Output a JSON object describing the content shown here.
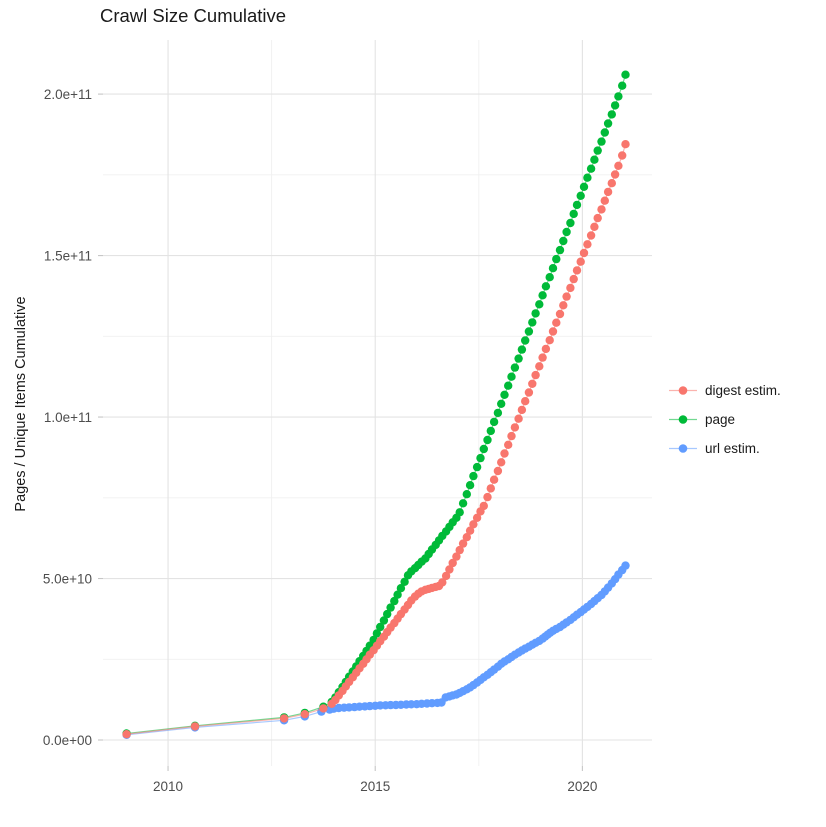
{
  "title": "Crawl Size Cumulative",
  "y_axis_title": "Pages / Unique Items Cumulative",
  "legend": {
    "position": "right",
    "items": [
      {
        "label": "digest estim.",
        "color": "#F8766D"
      },
      {
        "label": "page",
        "color": "#00BA38"
      },
      {
        "label": "url estim.",
        "color": "#619CFF"
      }
    ]
  },
  "colors": {
    "background": "#ffffff",
    "grid_major": "#e3e3e3",
    "grid_minor": "#f0f0f0",
    "axis_tick": "#c6c6c6",
    "tick_label": "#4d4d4d",
    "text": "#1a1a1a",
    "digest": "#F8766D",
    "page": "#00BA38",
    "url": "#619CFF"
  },
  "chart_data": {
    "type": "line",
    "title": "Crawl Size Cumulative",
    "xlabel": "",
    "ylabel": "Pages / Unique Items Cumulative",
    "values_unit": "cumulative items; point values below are in billions (value x 1e9)",
    "grid": true,
    "legend_position": "right",
    "x_domain": [
      2008.43,
      2021.68
    ],
    "y_domain_e9": [
      -8.05,
      216.75
    ],
    "x_major_ticks": [
      {
        "value": 2010,
        "label": "2010"
      },
      {
        "value": 2015,
        "label": "2015"
      },
      {
        "value": 2020,
        "label": "2020"
      }
    ],
    "x_minor_ticks": [
      2012.5,
      2017.5
    ],
    "y_major_ticks": [
      {
        "value": 0,
        "label": "0.0e+00"
      },
      {
        "value": 50,
        "label": "5.0e+10"
      },
      {
        "value": 100,
        "label": "1.0e+11"
      },
      {
        "value": 150,
        "label": "1.5e+11"
      },
      {
        "value": 200,
        "label": "2.0e+11"
      }
    ],
    "y_minor_ticks": [
      25,
      75,
      125,
      175
    ],
    "series": [
      {
        "name": "digest estim.",
        "color": "#F8766D",
        "points": [
          [
            2009.0,
            1.8
          ],
          [
            2010.65,
            4.2
          ],
          [
            2012.8,
            6.7
          ],
          [
            2013.3,
            8.0
          ],
          [
            2013.75,
            9.8
          ],
          [
            2013.95,
            11.2
          ],
          [
            2014.04,
            12.4
          ],
          [
            2014.12,
            13.8
          ],
          [
            2014.21,
            15.2
          ],
          [
            2014.29,
            16.6
          ],
          [
            2014.37,
            18.0
          ],
          [
            2014.46,
            19.4
          ],
          [
            2014.54,
            20.8
          ],
          [
            2014.62,
            22.2
          ],
          [
            2014.71,
            23.6
          ],
          [
            2014.79,
            25.0
          ],
          [
            2014.87,
            26.4
          ],
          [
            2014.96,
            27.8
          ],
          [
            2015.04,
            29.2
          ],
          [
            2015.12,
            30.6
          ],
          [
            2015.21,
            32.0
          ],
          [
            2015.29,
            33.4
          ],
          [
            2015.37,
            34.8
          ],
          [
            2015.46,
            36.2
          ],
          [
            2015.54,
            37.6
          ],
          [
            2015.62,
            39.0
          ],
          [
            2015.71,
            40.4
          ],
          [
            2015.79,
            41.8
          ],
          [
            2015.87,
            43.2
          ],
          [
            2015.96,
            44.4
          ],
          [
            2016.04,
            45.3
          ],
          [
            2016.12,
            46.0
          ],
          [
            2016.21,
            46.5
          ],
          [
            2016.29,
            46.8
          ],
          [
            2016.37,
            47.1
          ],
          [
            2016.46,
            47.4
          ],
          [
            2016.54,
            47.7
          ],
          [
            2016.62,
            48.8
          ],
          [
            2016.71,
            50.8
          ],
          [
            2016.79,
            52.8
          ],
          [
            2016.87,
            54.8
          ],
          [
            2016.96,
            56.8
          ],
          [
            2017.04,
            58.8
          ],
          [
            2017.12,
            60.8
          ],
          [
            2017.21,
            62.8
          ],
          [
            2017.29,
            64.8
          ],
          [
            2017.37,
            66.8
          ],
          [
            2017.46,
            68.8
          ],
          [
            2017.54,
            70.8
          ],
          [
            2017.62,
            72.5
          ],
          [
            2017.71,
            75.2
          ],
          [
            2017.79,
            77.9
          ],
          [
            2017.87,
            80.6
          ],
          [
            2017.96,
            83.3
          ],
          [
            2018.04,
            86.0
          ],
          [
            2018.12,
            88.7
          ],
          [
            2018.21,
            91.4
          ],
          [
            2018.29,
            94.1
          ],
          [
            2018.37,
            96.8
          ],
          [
            2018.46,
            99.5
          ],
          [
            2018.54,
            102.2
          ],
          [
            2018.62,
            104.9
          ],
          [
            2018.71,
            107.6
          ],
          [
            2018.79,
            110.3
          ],
          [
            2018.87,
            113.0
          ],
          [
            2018.96,
            115.7
          ],
          [
            2019.04,
            118.4
          ],
          [
            2019.12,
            121.1
          ],
          [
            2019.21,
            123.8
          ],
          [
            2019.29,
            126.5
          ],
          [
            2019.37,
            129.2
          ],
          [
            2019.46,
            131.9
          ],
          [
            2019.54,
            134.6
          ],
          [
            2019.62,
            137.3
          ],
          [
            2019.71,
            140.0
          ],
          [
            2019.79,
            142.7
          ],
          [
            2019.87,
            145.4
          ],
          [
            2019.96,
            148.1
          ],
          [
            2020.04,
            150.8
          ],
          [
            2020.12,
            153.5
          ],
          [
            2020.21,
            156.2
          ],
          [
            2020.29,
            158.9
          ],
          [
            2020.37,
            161.6
          ],
          [
            2020.46,
            164.3
          ],
          [
            2020.54,
            167.0
          ],
          [
            2020.62,
            169.7
          ],
          [
            2020.71,
            172.4
          ],
          [
            2020.79,
            175.1
          ],
          [
            2020.87,
            177.8
          ],
          [
            2020.96,
            181.0
          ],
          [
            2021.04,
            184.5
          ]
        ]
      },
      {
        "name": "page",
        "color": "#00BA38",
        "points": [
          [
            2009.0,
            2.0
          ],
          [
            2010.65,
            4.4
          ],
          [
            2012.8,
            7.0
          ],
          [
            2013.3,
            8.4
          ],
          [
            2013.75,
            10.3
          ],
          [
            2013.95,
            11.8
          ],
          [
            2014.04,
            13.2
          ],
          [
            2014.12,
            14.8
          ],
          [
            2014.21,
            16.4
          ],
          [
            2014.29,
            18.0
          ],
          [
            2014.37,
            19.6
          ],
          [
            2014.46,
            21.2
          ],
          [
            2014.54,
            22.8
          ],
          [
            2014.62,
            24.4
          ],
          [
            2014.71,
            26.0
          ],
          [
            2014.79,
            27.6
          ],
          [
            2014.87,
            29.2
          ],
          [
            2014.96,
            31.0
          ],
          [
            2015.04,
            33.0
          ],
          [
            2015.12,
            35.0
          ],
          [
            2015.21,
            37.0
          ],
          [
            2015.29,
            39.0
          ],
          [
            2015.37,
            41.0
          ],
          [
            2015.46,
            43.0
          ],
          [
            2015.54,
            45.0
          ],
          [
            2015.62,
            47.0
          ],
          [
            2015.71,
            49.0
          ],
          [
            2015.79,
            51.0
          ],
          [
            2015.87,
            52.2
          ],
          [
            2015.96,
            53.2
          ],
          [
            2016.04,
            54.2
          ],
          [
            2016.12,
            55.2
          ],
          [
            2016.21,
            56.2
          ],
          [
            2016.29,
            57.6
          ],
          [
            2016.37,
            59.0
          ],
          [
            2016.46,
            60.4
          ],
          [
            2016.54,
            61.8
          ],
          [
            2016.62,
            63.2
          ],
          [
            2016.71,
            64.6
          ],
          [
            2016.79,
            66.0
          ],
          [
            2016.87,
            67.4
          ],
          [
            2016.96,
            68.8
          ],
          [
            2017.04,
            70.5
          ],
          [
            2017.12,
            73.3
          ],
          [
            2017.21,
            76.1
          ],
          [
            2017.29,
            78.9
          ],
          [
            2017.37,
            81.7
          ],
          [
            2017.46,
            84.5
          ],
          [
            2017.54,
            87.3
          ],
          [
            2017.62,
            90.1
          ],
          [
            2017.71,
            92.9
          ],
          [
            2017.79,
            95.7
          ],
          [
            2017.87,
            98.5
          ],
          [
            2017.96,
            101.3
          ],
          [
            2018.04,
            104.1
          ],
          [
            2018.12,
            106.9
          ],
          [
            2018.21,
            109.7
          ],
          [
            2018.29,
            112.5
          ],
          [
            2018.37,
            115.3
          ],
          [
            2018.46,
            118.1
          ],
          [
            2018.54,
            120.9
          ],
          [
            2018.62,
            123.7
          ],
          [
            2018.71,
            126.5
          ],
          [
            2018.79,
            129.3
          ],
          [
            2018.87,
            132.1
          ],
          [
            2018.96,
            134.9
          ],
          [
            2019.04,
            137.7
          ],
          [
            2019.12,
            140.5
          ],
          [
            2019.21,
            143.3
          ],
          [
            2019.29,
            146.1
          ],
          [
            2019.37,
            148.9
          ],
          [
            2019.46,
            151.7
          ],
          [
            2019.54,
            154.5
          ],
          [
            2019.62,
            157.3
          ],
          [
            2019.71,
            160.1
          ],
          [
            2019.79,
            162.9
          ],
          [
            2019.87,
            165.7
          ],
          [
            2019.96,
            168.5
          ],
          [
            2020.04,
            171.3
          ],
          [
            2020.12,
            174.1
          ],
          [
            2020.21,
            176.9
          ],
          [
            2020.29,
            179.7
          ],
          [
            2020.37,
            182.5
          ],
          [
            2020.46,
            185.3
          ],
          [
            2020.54,
            188.1
          ],
          [
            2020.62,
            190.9
          ],
          [
            2020.71,
            193.7
          ],
          [
            2020.79,
            196.5
          ],
          [
            2020.87,
            199.3
          ],
          [
            2020.96,
            202.6
          ],
          [
            2021.04,
            206.0
          ]
        ]
      },
      {
        "name": "url estim.",
        "color": "#619CFF",
        "points": [
          [
            2009.0,
            1.6
          ],
          [
            2010.65,
            3.9
          ],
          [
            2012.8,
            6.1
          ],
          [
            2013.3,
            7.3
          ],
          [
            2013.7,
            8.8
          ],
          [
            2013.9,
            9.4
          ],
          [
            2014.0,
            9.7
          ],
          [
            2014.12,
            9.9
          ],
          [
            2014.25,
            10.0
          ],
          [
            2014.37,
            10.1
          ],
          [
            2014.5,
            10.2
          ],
          [
            2014.62,
            10.3
          ],
          [
            2014.75,
            10.4
          ],
          [
            2014.87,
            10.5
          ],
          [
            2015.0,
            10.6
          ],
          [
            2015.12,
            10.7
          ],
          [
            2015.25,
            10.75
          ],
          [
            2015.37,
            10.8
          ],
          [
            2015.5,
            10.85
          ],
          [
            2015.62,
            10.9
          ],
          [
            2015.75,
            11.0
          ],
          [
            2015.87,
            11.05
          ],
          [
            2016.0,
            11.1
          ],
          [
            2016.12,
            11.2
          ],
          [
            2016.25,
            11.3
          ],
          [
            2016.37,
            11.4
          ],
          [
            2016.5,
            11.5
          ],
          [
            2016.6,
            11.6
          ],
          [
            2016.7,
            13.2
          ],
          [
            2016.79,
            13.5
          ],
          [
            2016.87,
            13.8
          ],
          [
            2016.96,
            14.1
          ],
          [
            2017.04,
            14.6
          ],
          [
            2017.12,
            15.1
          ],
          [
            2017.21,
            15.7
          ],
          [
            2017.29,
            16.3
          ],
          [
            2017.37,
            17.0
          ],
          [
            2017.46,
            17.8
          ],
          [
            2017.54,
            18.6
          ],
          [
            2017.62,
            19.4
          ],
          [
            2017.71,
            20.2
          ],
          [
            2017.79,
            21.0
          ],
          [
            2017.87,
            21.8
          ],
          [
            2017.96,
            22.7
          ],
          [
            2018.04,
            23.6
          ],
          [
            2018.12,
            24.3
          ],
          [
            2018.21,
            25.0
          ],
          [
            2018.29,
            25.7
          ],
          [
            2018.37,
            26.4
          ],
          [
            2018.46,
            27.1
          ],
          [
            2018.54,
            27.7
          ],
          [
            2018.62,
            28.3
          ],
          [
            2018.71,
            28.9
          ],
          [
            2018.79,
            29.5
          ],
          [
            2018.87,
            30.1
          ],
          [
            2018.96,
            30.7
          ],
          [
            2019.04,
            31.4
          ],
          [
            2019.1,
            32.0
          ],
          [
            2019.16,
            32.6
          ],
          [
            2019.22,
            33.2
          ],
          [
            2019.29,
            33.8
          ],
          [
            2019.37,
            34.4
          ],
          [
            2019.46,
            35.0
          ],
          [
            2019.54,
            35.7
          ],
          [
            2019.62,
            36.4
          ],
          [
            2019.71,
            37.2
          ],
          [
            2019.79,
            38.0
          ],
          [
            2019.87,
            38.8
          ],
          [
            2019.96,
            39.6
          ],
          [
            2020.04,
            40.4
          ],
          [
            2020.12,
            41.2
          ],
          [
            2020.21,
            42.1
          ],
          [
            2020.29,
            43.0
          ],
          [
            2020.37,
            43.9
          ],
          [
            2020.46,
            44.9
          ],
          [
            2020.54,
            46.0
          ],
          [
            2020.62,
            47.2
          ],
          [
            2020.71,
            48.5
          ],
          [
            2020.79,
            49.8
          ],
          [
            2020.87,
            51.2
          ],
          [
            2020.96,
            52.6
          ],
          [
            2021.04,
            54.0
          ]
        ]
      }
    ]
  }
}
